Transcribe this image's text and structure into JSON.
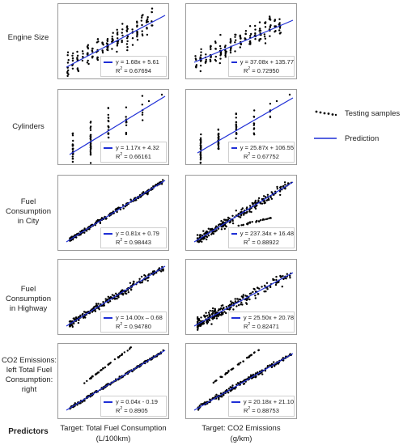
{
  "columns": [
    {
      "label_line1": "Target: Total Fuel Consumption",
      "label_line2": "(L/100km)"
    },
    {
      "label_line1": "Target: CO2 Emissions",
      "label_line2": "(g/km)"
    }
  ],
  "predictors_label": "Predictors",
  "rows": [
    {
      "label": "Engine Size"
    },
    {
      "label": "Cylinders"
    },
    {
      "label": "Fuel Consumption in City"
    },
    {
      "label": "Fuel Consumption in Highway"
    },
    {
      "label": "CO2 Emissions: left Total Fuel Consumption: right"
    }
  ],
  "legend": {
    "testing": "Testing samples",
    "prediction": "Prediction"
  },
  "colors": {
    "points": "#000000",
    "line": "#1f2fd6"
  },
  "r2_prefix": "R",
  "r2_sup": "2",
  "chart_data": [
    {
      "type": "scatter",
      "row": 0,
      "col": 0,
      "equation": "y = 1.68x + 5.61",
      "r2": " = 0.67694"
    },
    {
      "type": "scatter",
      "row": 0,
      "col": 1,
      "equation": "y = 37.08x + 135.77",
      "r2": " = 0.72950"
    },
    {
      "type": "scatter",
      "row": 1,
      "col": 0,
      "equation": "y = 1.17x + 4.32",
      "r2": " = 0.66161"
    },
    {
      "type": "scatter",
      "row": 1,
      "col": 1,
      "equation": "y = 25.87x + 106.55",
      "r2": " = 0.67752"
    },
    {
      "type": "scatter",
      "row": 2,
      "col": 0,
      "equation": "y = 0.81x + 0.79",
      "r2": " = 0.98443"
    },
    {
      "type": "scatter",
      "row": 2,
      "col": 1,
      "equation": "y = 237.34x + 16.48",
      "r2": " = 0.88922"
    },
    {
      "type": "scatter",
      "row": 3,
      "col": 0,
      "equation": "y = 14.00x – 0.68",
      "r2": " = 0.94780"
    },
    {
      "type": "scatter",
      "row": 3,
      "col": 1,
      "equation": "y = 25.50x + 20.78",
      "r2": " = 0.82471"
    },
    {
      "type": "scatter",
      "row": 4,
      "col": 0,
      "equation": "y = 0.04x - 0.19",
      "r2": " = 0.8905"
    },
    {
      "type": "scatter",
      "row": 4,
      "col": 1,
      "equation": "y = 20.18x + 21.10",
      "r2": " = 0.88753"
    }
  ]
}
